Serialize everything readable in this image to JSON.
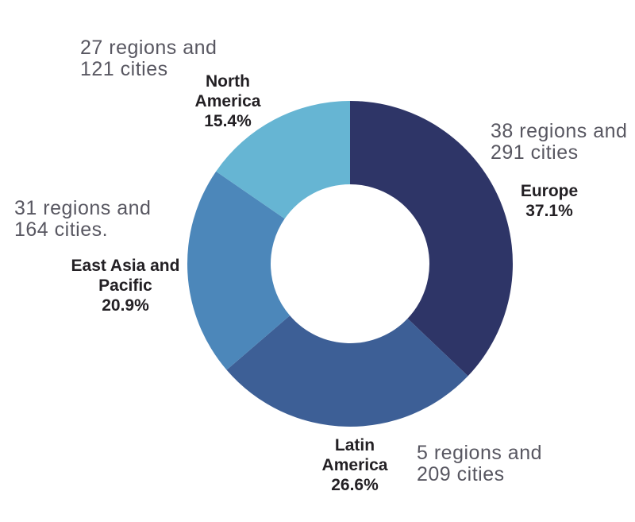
{
  "chart_data": {
    "type": "pie",
    "subtype": "donut",
    "title": "",
    "categories": [
      "Europe",
      "Latin America",
      "East Asia and Pacific",
      "North America"
    ],
    "values": [
      37.1,
      26.6,
      20.9,
      15.4
    ],
    "colors": [
      "#2e3567",
      "#3d5f96",
      "#4c87ba",
      "#66b5d3"
    ],
    "annotations": [
      "38 regions and 291 cities",
      "5 regions and 209 cities",
      "31 regions and 164 cities.",
      "27 regions and 121 cities"
    ],
    "start_angle_deg": 0,
    "direction": "clockwise",
    "donut_hole_ratio": 0.49,
    "legend": "none"
  },
  "labels": {
    "europe": {
      "name": "Europe\n37.1%",
      "annotation": "38 regions and\n291 cities"
    },
    "latin_america": {
      "name": "Latin\nAmerica\n26.6%",
      "annotation": "5 regions and\n209 cities"
    },
    "east_asia_pacific": {
      "name": "East Asia and\nPacific\n20.9%",
      "annotation": "31 regions and\n164 cities."
    },
    "north_america": {
      "name": "North\nAmerica\n15.4%",
      "annotation": "27 regions and\n121 cities"
    }
  },
  "colors": {
    "background": "#ffffff",
    "annotation_text": "#585761",
    "label_text": "#232024"
  }
}
